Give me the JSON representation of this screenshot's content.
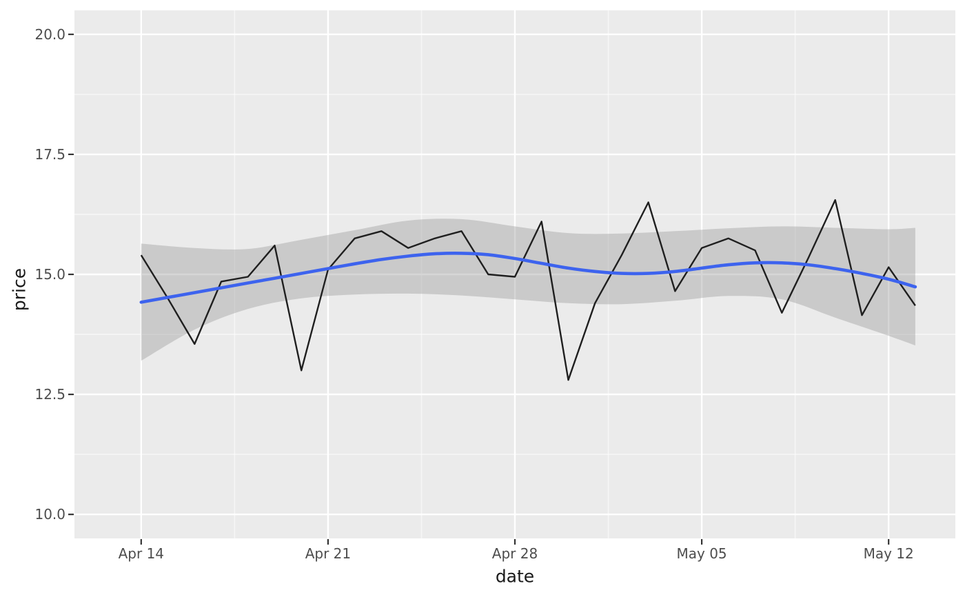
{
  "chart_data": {
    "type": "line",
    "title": "",
    "xlabel": "date",
    "ylabel": "price",
    "legend": "none",
    "grid": "on",
    "panel_color": "#EBEBEB",
    "grid_color": "#FFFFFF",
    "tick_text_color": "#4D4D4D",
    "tick_mark_color": "#333333",
    "x_domain_days": [
      -2.5,
      30.5
    ],
    "y_domain": [
      9.5,
      20.5
    ],
    "x_ticks": [
      {
        "day": 0,
        "label": "Apr 14"
      },
      {
        "day": 7,
        "label": "Apr 21"
      },
      {
        "day": 14,
        "label": "Apr 28"
      },
      {
        "day": 21,
        "label": "May 05"
      },
      {
        "day": 28,
        "label": "May 12"
      }
    ],
    "x_minor_days": [
      3.5,
      10.5,
      17.5,
      24.5
    ],
    "y_ticks": [
      {
        "value": 10.0,
        "label": "10.0"
      },
      {
        "value": 12.5,
        "label": "12.5"
      },
      {
        "value": 15.0,
        "label": "15.0"
      },
      {
        "value": 17.5,
        "label": "17.5"
      },
      {
        "value": 20.0,
        "label": "20.0"
      }
    ],
    "y_minor": [
      11.25,
      13.75,
      16.25,
      18.75
    ],
    "dates": [
      "Apr 14",
      "Apr 15",
      "Apr 16",
      "Apr 17",
      "Apr 18",
      "Apr 19",
      "Apr 20",
      "Apr 21",
      "Apr 22",
      "Apr 23",
      "Apr 24",
      "Apr 25",
      "Apr 26",
      "Apr 27",
      "Apr 28",
      "Apr 29",
      "Apr 30",
      "May 01",
      "May 02",
      "May 03",
      "May 04",
      "May 05",
      "May 06",
      "May 07",
      "May 08",
      "May 09",
      "May 10",
      "May 11",
      "May 12",
      "May 13"
    ],
    "series": [
      {
        "name": "price",
        "kind": "raw-line",
        "color": "#1F1F1F",
        "width": 2.4,
        "days": [
          0,
          1,
          2,
          3,
          4,
          5,
          6,
          7,
          8,
          9,
          10,
          11,
          12,
          13,
          14,
          15,
          16,
          17,
          18,
          19,
          20,
          21,
          22,
          23,
          24,
          25,
          26,
          27,
          28,
          29
        ],
        "values": [
          15.4,
          14.5,
          13.55,
          14.85,
          14.95,
          15.6,
          13.0,
          15.1,
          15.75,
          15.9,
          15.55,
          15.75,
          15.9,
          15.0,
          14.95,
          16.1,
          12.8,
          14.4,
          15.4,
          16.5,
          14.65,
          15.55,
          15.75,
          15.5,
          14.2,
          15.35,
          16.55,
          14.15,
          15.15,
          14.35
        ]
      },
      {
        "name": "loess-smooth",
        "kind": "smooth-line",
        "color": "#3D63EE",
        "width": 4.6,
        "days": [
          0,
          1,
          2,
          3,
          4,
          5,
          6,
          7,
          8,
          9,
          10,
          11,
          12,
          13,
          14,
          15,
          16,
          17,
          18,
          19,
          20,
          21,
          22,
          23,
          24,
          25,
          26,
          27,
          28,
          29
        ],
        "values": [
          14.42,
          14.52,
          14.62,
          14.72,
          14.82,
          14.92,
          15.02,
          15.12,
          15.22,
          15.31,
          15.38,
          15.43,
          15.44,
          15.41,
          15.33,
          15.23,
          15.13,
          15.06,
          15.02,
          15.02,
          15.06,
          15.13,
          15.2,
          15.24,
          15.24,
          15.2,
          15.12,
          15.02,
          14.9,
          14.74
        ]
      },
      {
        "name": "confidence-band",
        "kind": "ribbon",
        "fill": "rgba(153,153,153,0.4)",
        "days": [
          0,
          2,
          4,
          6,
          8,
          10,
          12,
          14,
          16,
          18,
          20,
          22,
          24,
          26,
          28,
          29
        ],
        "upper": [
          15.64,
          15.55,
          15.53,
          15.72,
          15.92,
          16.12,
          16.15,
          16.0,
          15.86,
          15.85,
          15.9,
          15.96,
          16.0,
          15.97,
          15.94,
          15.97
        ],
        "lower": [
          13.2,
          13.85,
          14.28,
          14.5,
          14.58,
          14.6,
          14.56,
          14.48,
          14.4,
          14.38,
          14.45,
          14.55,
          14.48,
          14.1,
          13.72,
          13.52
        ]
      }
    ]
  }
}
